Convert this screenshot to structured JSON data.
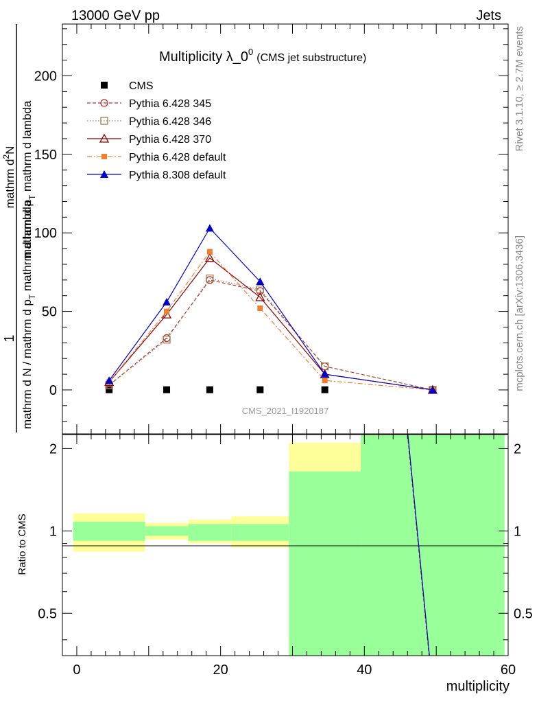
{
  "header": {
    "left": "13000 GeV pp",
    "right": "Jets"
  },
  "side_text": {
    "top": "Rivet 3.1.10, ≥ 2.7M events",
    "bottom": "mcplots.cern.ch [arXiv:1306.3436]"
  },
  "chart_data": [
    {
      "type": "line",
      "title": "Multiplicity λ_0",
      "title_sup": "0",
      "subtitle": "(CMS jet substructure)",
      "watermark": "CMS_2021_I1920187",
      "ylabel_numerator": "1",
      "ylabel_main": "mathrm d N / mathrm d p",
      "ylabel_sub": "T",
      "ylabel_rest": " mathrm d lambda",
      "ylabel_right": "mathrm d",
      "ylabel_right_sup": "2",
      "ylabel_right_rest": "N",
      "ylabel_right_2": "mathrm d p",
      "ylabel_right_2_sub": "T",
      "ylabel_right_2_rest": " mathrm d lambda",
      "xlim": [
        -2,
        60
      ],
      "ylim": [
        -28,
        233
      ],
      "yticks": [
        0,
        50,
        100,
        150,
        200
      ],
      "yticklabels": [
        "0",
        "50",
        "100",
        "150",
        "200"
      ],
      "legend_position": "top-left",
      "x": [
        4.5,
        12.5,
        18.5,
        25.5,
        34.5,
        49.5
      ],
      "series": [
        {
          "name": "CMS",
          "color": "#000000",
          "marker": "square-filled",
          "line": "none",
          "values": [
            0.1,
            0.1,
            0.1,
            0.1,
            0.1,
            0.0
          ]
        },
        {
          "name": "Pythia 6.428 345",
          "color": "#b03030",
          "marker": "circle-open",
          "line": "dashed",
          "values": [
            3,
            33,
            70,
            63,
            15,
            0
          ]
        },
        {
          "name": "Pythia 6.428 346",
          "color": "#a08050",
          "marker": "square-open",
          "line": "dotted",
          "values": [
            3,
            32,
            71,
            64,
            15,
            0
          ]
        },
        {
          "name": "Pythia 6.428 370",
          "color": "#8b0000",
          "marker": "triangle-open",
          "line": "solid",
          "values": [
            5,
            48,
            84,
            59,
            10,
            0
          ]
        },
        {
          "name": "Pythia 6.428 default",
          "color": "#f08030",
          "marker": "square-filled-small",
          "line": "dashdot",
          "values": [
            5,
            50,
            88,
            52,
            6,
            0
          ]
        },
        {
          "name": "Pythia 8.308 default",
          "color": "#0000cc",
          "marker": "triangle-filled",
          "line": "solid",
          "values": [
            6,
            56,
            103,
            69,
            10,
            0
          ]
        }
      ]
    },
    {
      "type": "area",
      "ylabel": "Ratio to CMS",
      "xlabel": "multiplicity",
      "xlim": [
        -2,
        60
      ],
      "ylim": [
        0.35,
        2.25
      ],
      "xticks": [
        0,
        20,
        40,
        60
      ],
      "xticklabels": [
        "0",
        "20",
        "40",
        "60"
      ],
      "yticks": [
        0.5,
        1,
        2
      ],
      "yticklabels": [
        "0.5",
        "1",
        "2"
      ],
      "bins": [
        [
          -0.5,
          9.5
        ],
        [
          9.5,
          15.5
        ],
        [
          15.5,
          21.5
        ],
        [
          21.5,
          29.5
        ],
        [
          29.5,
          39.5
        ],
        [
          39.5,
          59.5
        ]
      ],
      "band_inner": [
        [
          0.92,
          1.08
        ],
        [
          0.96,
          1.04
        ],
        [
          0.92,
          1.06
        ],
        [
          0.92,
          1.06
        ],
        [
          0.35,
          1.65
        ],
        [
          0.35,
          2.3
        ]
      ],
      "band_outer": [
        [
          0.84,
          1.16
        ],
        [
          0.93,
          1.07
        ],
        [
          0.9,
          1.1
        ],
        [
          0.87,
          1.13
        ],
        [
          0.35,
          2.1
        ],
        [
          0.35,
          2.3
        ]
      ],
      "inner_color": "#99ff99",
      "outer_color": "#ffff99",
      "ratio_line": [
        [
          46.0,
          2.3
        ],
        [
          49.0,
          0.35
        ]
      ]
    }
  ]
}
